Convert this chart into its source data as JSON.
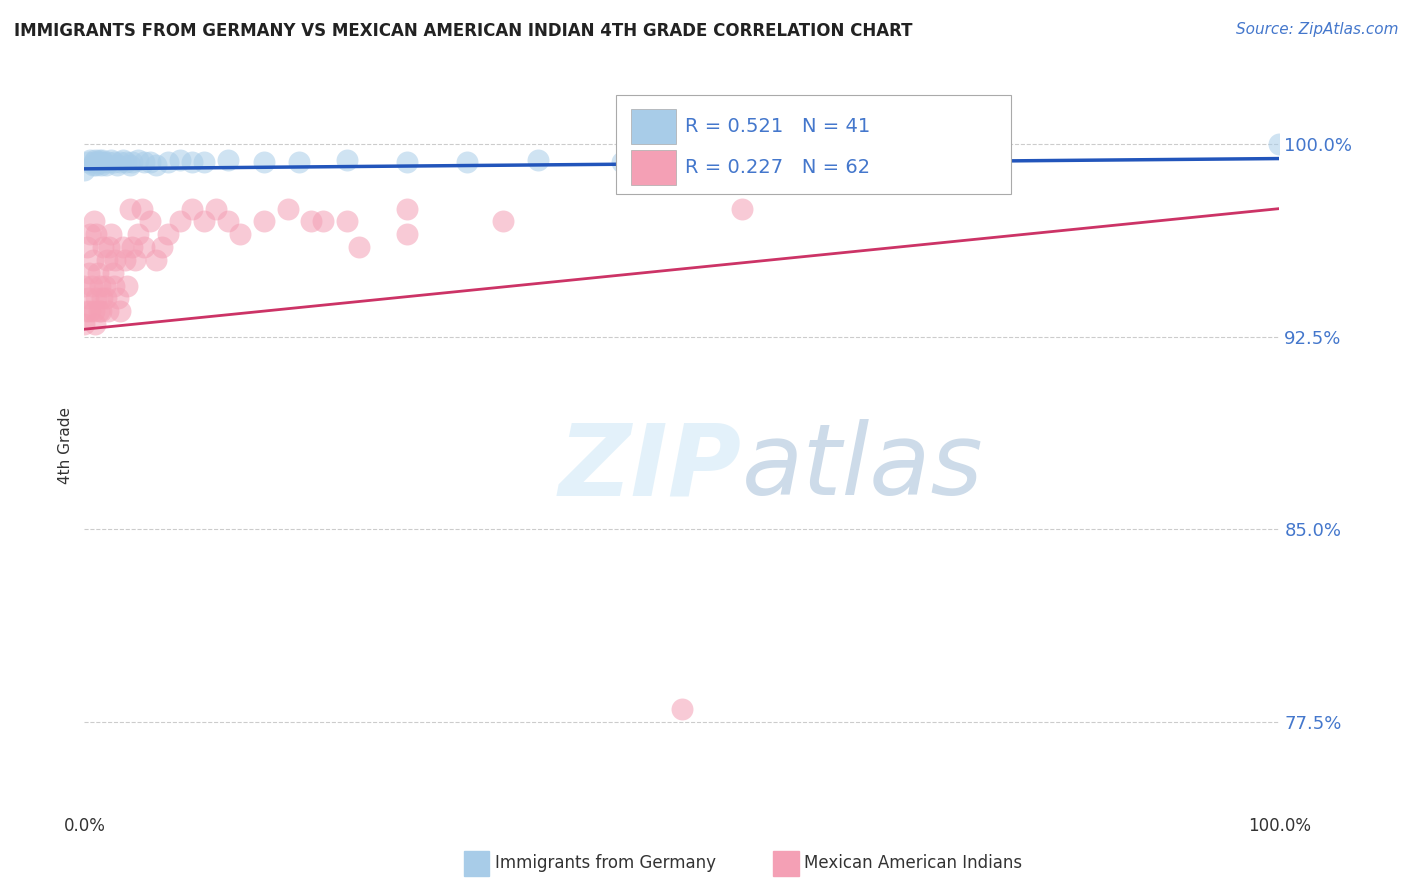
{
  "title": "IMMIGRANTS FROM GERMANY VS MEXICAN AMERICAN INDIAN 4TH GRADE CORRELATION CHART",
  "source": "Source: ZipAtlas.com",
  "ylabel": "4th Grade",
  "xlim": [
    0.0,
    1.0
  ],
  "ylim": [
    0.74,
    1.025
  ],
  "yticks": [
    0.775,
    0.85,
    0.925,
    1.0
  ],
  "ytick_labels": [
    "77.5%",
    "85.0%",
    "92.5%",
    "100.0%"
  ],
  "xticks": [
    0.0,
    0.25,
    0.5,
    0.75,
    1.0
  ],
  "xtick_labels": [
    "0.0%",
    "",
    "",
    "",
    "100.0%"
  ],
  "blue_R": 0.521,
  "blue_N": 41,
  "pink_R": 0.227,
  "pink_N": 62,
  "blue_color": "#a8cce8",
  "pink_color": "#f4a0b5",
  "blue_line_color": "#2255bb",
  "pink_line_color": "#cc3366",
  "legend_label_blue": "Immigrants from Germany",
  "legend_label_pink": "Mexican American Indians",
  "blue_scatter_x": [
    0.0,
    0.003,
    0.005,
    0.007,
    0.008,
    0.009,
    0.01,
    0.011,
    0.012,
    0.013,
    0.014,
    0.015,
    0.016,
    0.018,
    0.02,
    0.022,
    0.025,
    0.027,
    0.03,
    0.032,
    0.035,
    0.038,
    0.04,
    0.045,
    0.05,
    0.055,
    0.06,
    0.07,
    0.08,
    0.09,
    0.1,
    0.12,
    0.15,
    0.18,
    0.22,
    0.27,
    0.32,
    0.38,
    0.45,
    0.75,
    1.0
  ],
  "blue_scatter_y": [
    0.99,
    0.993,
    0.994,
    0.992,
    0.993,
    0.994,
    0.992,
    0.993,
    0.994,
    0.993,
    0.992,
    0.994,
    0.993,
    0.992,
    0.993,
    0.994,
    0.993,
    0.992,
    0.993,
    0.994,
    0.993,
    0.992,
    0.993,
    0.994,
    0.993,
    0.993,
    0.992,
    0.993,
    0.994,
    0.993,
    0.993,
    0.994,
    0.993,
    0.993,
    0.994,
    0.993,
    0.993,
    0.994,
    0.993,
    0.999,
    1.0
  ],
  "pink_scatter_x": [
    0.0,
    0.0,
    0.001,
    0.002,
    0.003,
    0.004,
    0.005,
    0.005,
    0.006,
    0.007,
    0.008,
    0.008,
    0.009,
    0.01,
    0.01,
    0.011,
    0.012,
    0.013,
    0.014,
    0.015,
    0.016,
    0.017,
    0.018,
    0.019,
    0.02,
    0.021,
    0.022,
    0.024,
    0.025,
    0.026,
    0.028,
    0.03,
    0.032,
    0.034,
    0.036,
    0.038,
    0.04,
    0.042,
    0.045,
    0.048,
    0.05,
    0.055,
    0.06,
    0.065,
    0.07,
    0.08,
    0.09,
    0.1,
    0.11,
    0.12,
    0.13,
    0.15,
    0.17,
    0.2,
    0.23,
    0.27,
    0.19,
    0.22,
    0.27,
    0.35,
    0.5,
    0.55
  ],
  "pink_scatter_y": [
    0.93,
    0.945,
    0.935,
    0.96,
    0.94,
    0.95,
    0.935,
    0.965,
    0.945,
    0.955,
    0.935,
    0.97,
    0.93,
    0.94,
    0.965,
    0.95,
    0.935,
    0.945,
    0.935,
    0.94,
    0.96,
    0.945,
    0.94,
    0.955,
    0.935,
    0.96,
    0.965,
    0.95,
    0.945,
    0.955,
    0.94,
    0.935,
    0.96,
    0.955,
    0.945,
    0.975,
    0.96,
    0.955,
    0.965,
    0.975,
    0.96,
    0.97,
    0.955,
    0.96,
    0.965,
    0.97,
    0.975,
    0.97,
    0.975,
    0.97,
    0.965,
    0.97,
    0.975,
    0.97,
    0.96,
    0.965,
    0.97,
    0.97,
    0.975,
    0.97,
    0.78,
    0.975
  ]
}
